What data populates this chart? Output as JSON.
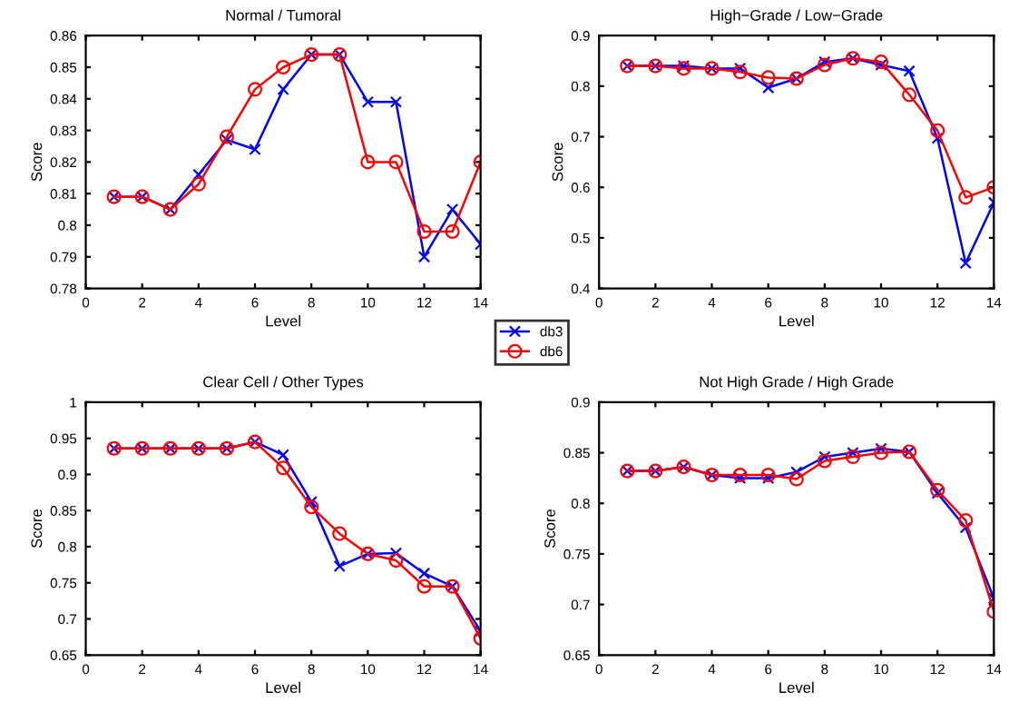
{
  "chart_data": [
    {
      "type": "line",
      "title": "Normal / Tumoral",
      "xlabel": "Level",
      "ylabel": "Score",
      "x": [
        1,
        2,
        3,
        4,
        5,
        6,
        7,
        8,
        9,
        10,
        11,
        12,
        13,
        14
      ],
      "xlim": [
        0,
        14
      ],
      "xticks": [
        0,
        2,
        4,
        6,
        8,
        10,
        12,
        14
      ],
      "ylim": [
        0.78,
        0.86
      ],
      "yticks": [
        0.78,
        0.79,
        0.8,
        0.81,
        0.82,
        0.83,
        0.84,
        0.85,
        0.86
      ],
      "legend": "bottom right",
      "series": [
        {
          "name": "db3",
          "color": "#0000ff",
          "marker": "cross",
          "values": [
            0.809,
            0.809,
            0.805,
            0.816,
            0.827,
            0.824,
            0.843,
            0.854,
            0.854,
            0.839,
            0.839,
            0.79,
            0.805,
            0.794
          ]
        },
        {
          "name": "db6",
          "color": "#ff0000",
          "marker": "circle",
          "values": [
            0.809,
            0.809,
            0.805,
            0.813,
            0.828,
            0.843,
            0.85,
            0.854,
            0.854,
            0.82,
            0.82,
            0.798,
            0.798,
            0.82
          ]
        }
      ]
    },
    {
      "type": "line",
      "title": "High−Grade / Low−Grade",
      "xlabel": "Level",
      "ylabel": "Score",
      "x": [
        1,
        2,
        3,
        4,
        5,
        6,
        7,
        8,
        9,
        10,
        11,
        12,
        13,
        14
      ],
      "xlim": [
        0,
        14
      ],
      "xticks": [
        0,
        2,
        4,
        6,
        8,
        10,
        12,
        14
      ],
      "ylim": [
        0.4,
        0.9
      ],
      "yticks": [
        0.4,
        0.5,
        0.6,
        0.7,
        0.8,
        0.9
      ],
      "series": [
        {
          "color": "#0000ff",
          "marker": "cross",
          "values": [
            0.84,
            0.84,
            0.84,
            0.835,
            0.835,
            0.797,
            0.815,
            0.848,
            0.855,
            0.842,
            0.83,
            0.697,
            0.45,
            0.57
          ]
        },
        {
          "color": "#ff0000",
          "marker": "circle",
          "values": [
            0.84,
            0.84,
            0.835,
            0.835,
            0.828,
            0.817,
            0.815,
            0.842,
            0.855,
            0.848,
            0.783,
            0.712,
            0.58,
            0.6
          ]
        }
      ]
    },
    {
      "type": "line",
      "title": "Clear Cell / Other Types",
      "xlabel": "Level",
      "ylabel": "Score",
      "x": [
        1,
        2,
        3,
        4,
        5,
        6,
        7,
        8,
        9,
        10,
        11,
        12,
        13,
        14
      ],
      "xlim": [
        0,
        14
      ],
      "xticks": [
        0,
        2,
        4,
        6,
        8,
        10,
        12,
        14
      ],
      "ylim": [
        0.65,
        1
      ],
      "yticks": [
        0.65,
        0.7,
        0.75,
        0.8,
        0.85,
        0.9,
        0.95,
        1
      ],
      "series": [
        {
          "color": "#0000ff",
          "marker": "cross",
          "values": [
            0.936,
            0.936,
            0.936,
            0.936,
            0.936,
            0.945,
            0.927,
            0.862,
            0.773,
            0.79,
            0.791,
            0.763,
            0.745,
            0.683
          ]
        },
        {
          "color": "#ff0000",
          "marker": "circle",
          "values": [
            0.936,
            0.936,
            0.936,
            0.936,
            0.936,
            0.945,
            0.909,
            0.855,
            0.818,
            0.79,
            0.781,
            0.745,
            0.745,
            0.673
          ]
        }
      ]
    },
    {
      "type": "line",
      "title": "Not High Grade / High Grade",
      "xlabel": "Level",
      "ylabel": "Score",
      "x": [
        1,
        2,
        3,
        4,
        5,
        6,
        7,
        8,
        9,
        10,
        11,
        12,
        13,
        14
      ],
      "xlim": [
        0,
        14
      ],
      "xticks": [
        0,
        2,
        4,
        6,
        8,
        10,
        12,
        14
      ],
      "ylim": [
        0.65,
        0.9
      ],
      "yticks": [
        0.65,
        0.7,
        0.75,
        0.8,
        0.85,
        0.9
      ],
      "series": [
        {
          "color": "#0000ff",
          "marker": "cross",
          "values": [
            0.832,
            0.832,
            0.836,
            0.828,
            0.825,
            0.825,
            0.831,
            0.846,
            0.85,
            0.854,
            0.851,
            0.81,
            0.776,
            0.706
          ]
        },
        {
          "color": "#ff0000",
          "marker": "circle",
          "values": [
            0.832,
            0.832,
            0.836,
            0.828,
            0.828,
            0.828,
            0.824,
            0.842,
            0.846,
            0.85,
            0.851,
            0.813,
            0.783,
            0.693
          ]
        }
      ]
    }
  ]
}
